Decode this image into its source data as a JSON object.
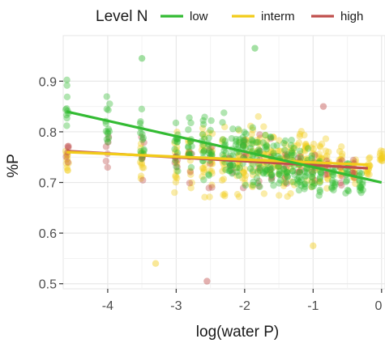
{
  "chart_data": {
    "type": "scatter",
    "xlabel": "log(water P)",
    "ylabel": "%P",
    "xlim": [
      -4.65,
      0.05
    ],
    "ylim": [
      0.49,
      0.99
    ],
    "x_ticks": [
      -4,
      -3,
      -2,
      -1,
      0
    ],
    "y_ticks": [
      0.5,
      0.6,
      0.7,
      0.8,
      0.9
    ],
    "grid": true,
    "legend": {
      "title": "Level N",
      "position": "top",
      "entries": [
        {
          "label": "low",
          "color": "#33bb33"
        },
        {
          "label": "interm",
          "color": "#f2cc1a"
        },
        {
          "label": "high",
          "color": "#c0504d"
        }
      ]
    },
    "series": [
      {
        "name": "low",
        "color": "#33bb33",
        "trend": {
          "x": [
            -4.6,
            0.0
          ],
          "y": [
            0.84,
            0.7
          ]
        },
        "x_columns": [
          -4.6,
          -4.0,
          -3.5,
          -3.0,
          -2.8,
          -2.6,
          -2.5,
          -2.3,
          -2.2,
          -2.1,
          -2.0,
          -1.9,
          -1.8,
          -1.7,
          -1.6,
          -1.5,
          -1.4,
          -1.3,
          -1.2,
          -1.1,
          -1.0,
          -0.9,
          -0.7,
          -0.5,
          -0.3
        ],
        "y_mean": [
          0.84,
          0.81,
          0.79,
          0.78,
          0.77,
          0.77,
          0.76,
          0.76,
          0.76,
          0.75,
          0.75,
          0.74,
          0.74,
          0.74,
          0.73,
          0.73,
          0.73,
          0.73,
          0.72,
          0.72,
          0.72,
          0.71,
          0.71,
          0.71,
          0.7
        ],
        "y_spread": [
          0.08,
          0.08,
          0.08,
          0.08,
          0.08,
          0.09,
          0.09,
          0.09,
          0.09,
          0.09,
          0.09,
          0.09,
          0.09,
          0.08,
          0.08,
          0.08,
          0.08,
          0.08,
          0.08,
          0.07,
          0.07,
          0.06,
          0.06,
          0.05,
          0.04
        ],
        "points_per_column": 14,
        "outliers": [
          {
            "x": -1.85,
            "y": 0.965
          },
          {
            "x": -3.5,
            "y": 0.945
          }
        ]
      },
      {
        "name": "interm",
        "color": "#f2cc1a",
        "trend": {
          "x": [
            -4.6,
            -0.2
          ],
          "y": [
            0.76,
            0.735
          ]
        },
        "x_columns": [
          -4.6,
          -3.5,
          -3.0,
          -2.8,
          -2.6,
          -2.5,
          -2.3,
          -2.1,
          -2.0,
          -1.9,
          -1.8,
          -1.7,
          -1.6,
          -1.5,
          -1.4,
          -1.3,
          -1.2,
          -1.1,
          -1.0,
          -0.9,
          -0.8,
          -0.6,
          -0.4,
          -0.2,
          0.0
        ],
        "y_mean": [
          0.74,
          0.74,
          0.74,
          0.74,
          0.74,
          0.74,
          0.74,
          0.74,
          0.75,
          0.75,
          0.75,
          0.75,
          0.75,
          0.75,
          0.74,
          0.74,
          0.75,
          0.75,
          0.74,
          0.74,
          0.74,
          0.74,
          0.73,
          0.73,
          0.75
        ],
        "y_spread": [
          0.05,
          0.07,
          0.08,
          0.09,
          0.1,
          0.1,
          0.1,
          0.1,
          0.1,
          0.1,
          0.1,
          0.09,
          0.09,
          0.09,
          0.09,
          0.09,
          0.08,
          0.08,
          0.08,
          0.07,
          0.06,
          0.05,
          0.04,
          0.03,
          0.02
        ],
        "points_per_column": 14,
        "outliers": [
          {
            "x": -3.3,
            "y": 0.54
          },
          {
            "x": -1.0,
            "y": 0.575
          }
        ]
      },
      {
        "name": "high",
        "color": "#c0504d",
        "trend": {
          "x": [
            -4.6,
            -0.2
          ],
          "y": [
            0.762,
            0.728
          ]
        },
        "x_columns": [
          -4.6,
          -4.0,
          -3.5,
          -3.0,
          -2.8,
          -2.5,
          -2.2,
          -2.0,
          -1.8,
          -1.6,
          -1.4,
          -1.2,
          -1.0,
          -0.8,
          -0.6,
          -0.4
        ],
        "y_mean": [
          0.76,
          0.76,
          0.75,
          0.75,
          0.75,
          0.74,
          0.74,
          0.74,
          0.74,
          0.74,
          0.74,
          0.73,
          0.73,
          0.73,
          0.73,
          0.73
        ],
        "y_spread": [
          0.05,
          0.05,
          0.06,
          0.07,
          0.07,
          0.07,
          0.07,
          0.07,
          0.07,
          0.07,
          0.06,
          0.06,
          0.06,
          0.05,
          0.05,
          0.04
        ],
        "points_per_column": 6,
        "outliers": [
          {
            "x": -2.55,
            "y": 0.505
          },
          {
            "x": -0.85,
            "y": 0.85
          }
        ]
      }
    ]
  }
}
